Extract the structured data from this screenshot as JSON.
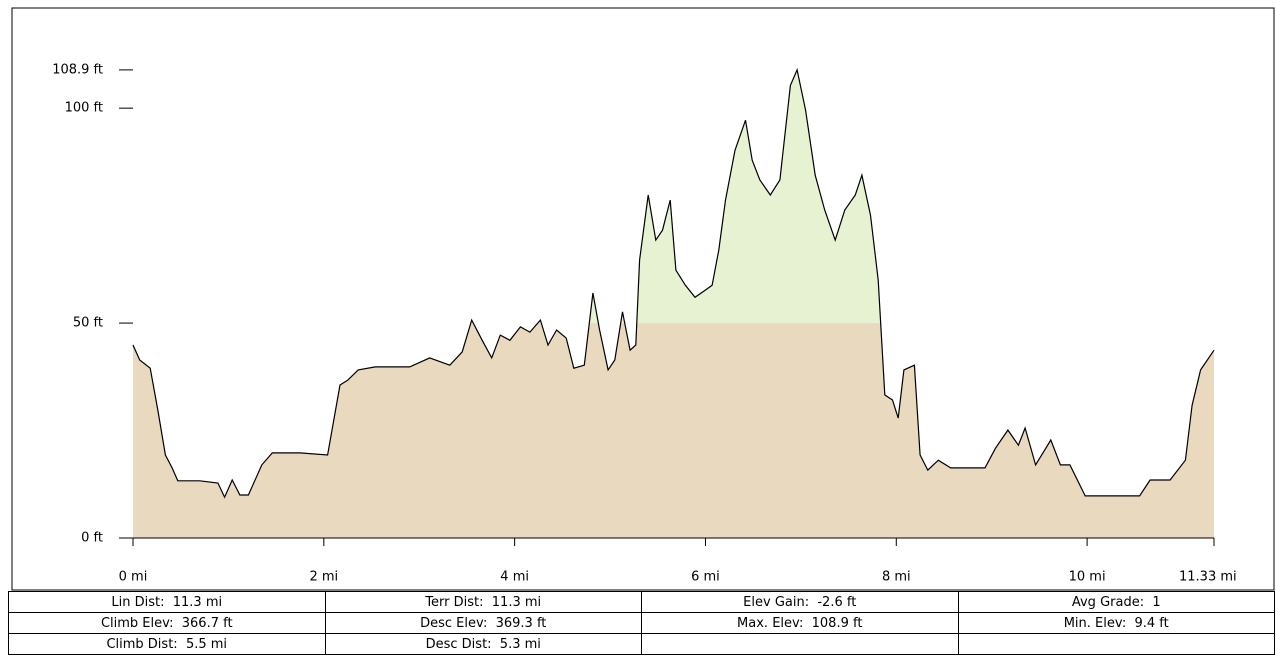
{
  "chart_data": {
    "type": "area",
    "x": [
      0,
      0.07,
      0.18,
      0.26,
      0.34,
      0.41,
      0.47,
      0.7,
      0.89,
      0.96,
      1.04,
      1.12,
      1.21,
      1.35,
      1.46,
      1.75,
      2.04,
      2.17,
      2.25,
      2.36,
      2.54,
      2.9,
      3.11,
      3.32,
      3.45,
      3.55,
      3.66,
      3.76,
      3.85,
      3.95,
      4.06,
      4.16,
      4.27,
      4.35,
      4.44,
      4.54,
      4.62,
      4.73,
      4.82,
      4.89,
      4.98,
      5.05,
      5.13,
      5.21,
      5.27,
      5.31,
      5.4,
      5.48,
      5.55,
      5.63,
      5.69,
      5.79,
      5.89,
      6.0,
      6.07,
      6.14,
      6.21,
      6.31,
      6.42,
      6.49,
      6.57,
      6.68,
      6.78,
      6.89,
      6.96,
      7.05,
      7.15,
      7.25,
      7.36,
      7.46,
      7.57,
      7.64,
      7.73,
      7.81,
      7.88,
      7.96,
      8.02,
      8.08,
      8.19,
      8.25,
      8.33,
      8.44,
      8.57,
      8.93,
      9.04,
      9.17,
      9.28,
      9.35,
      9.46,
      9.62,
      9.72,
      9.82,
      9.98,
      10.55,
      10.66,
      10.87,
      11.03,
      11.1,
      11.19,
      11.33
    ],
    "values": [
      44.9,
      41.4,
      39.5,
      29.8,
      19.3,
      16.3,
      13.3,
      13.3,
      12.8,
      9.5,
      13.5,
      10,
      10,
      17,
      19.8,
      19.8,
      19.3,
      35.6,
      36.7,
      39.1,
      39.8,
      39.8,
      41.9,
      40.2,
      43.3,
      50.7,
      46,
      41.9,
      47.2,
      46,
      49.1,
      47.9,
      50.7,
      44.9,
      48.4,
      46.5,
      39.5,
      40.2,
      57,
      48.4,
      39.1,
      41.4,
      52.6,
      43.7,
      44.9,
      64.7,
      79.8,
      69.3,
      71.6,
      78.6,
      62.3,
      58.8,
      56,
      57.7,
      58.8,
      67,
      78.6,
      90.2,
      97.2,
      87.9,
      83.3,
      79.8,
      83.3,
      105.3,
      108.9,
      99.5,
      84.4,
      76.3,
      69.3,
      76.3,
      79.8,
      84.4,
      75.1,
      60,
      33.3,
      32.1,
      27.9,
      39.1,
      40.2,
      19.3,
      15.8,
      18.1,
      16.3,
      16.3,
      20.9,
      25.1,
      21.6,
      25.6,
      17,
      22.8,
      17,
      17,
      9.8,
      9.8,
      13.5,
      13.5,
      18.1,
      30.9,
      39.1,
      43.7
    ],
    "xlim": [
      0,
      11.33
    ],
    "ylim": [
      0,
      123.3
    ],
    "xticks": [
      {
        "value": 0,
        "label": "0 mi"
      },
      {
        "value": 2,
        "label": "2 mi"
      },
      {
        "value": 4,
        "label": "4 mi"
      },
      {
        "value": 6,
        "label": "6 mi"
      },
      {
        "value": 8,
        "label": "8 mi"
      },
      {
        "value": 10,
        "label": "10 mi"
      },
      {
        "value": 11.33,
        "label": "11.33 mi"
      }
    ],
    "yticks": [
      {
        "value": 0,
        "label": "0 ft"
      },
      {
        "value": 50,
        "label": "50 ft"
      },
      {
        "value": 100,
        "label": "100 ft"
      },
      {
        "value": 108.9,
        "label": "108.9 ft"
      }
    ],
    "highlight_above": 50,
    "fill_color": "#e8d9bf",
    "highlight_color": "#e6f2d2",
    "line_color": "#000000"
  },
  "table": {
    "rows": [
      [
        "Lin Dist:  11.3 mi",
        "Terr Dist:  11.3 mi",
        "Elev Gain:  -2.6 ft",
        "Avg Grade:  1"
      ],
      [
        "Climb Elev:  366.7 ft",
        "Desc Elev:  369.3 ft",
        "Max. Elev:  108.9 ft",
        "Min. Elev:  9.4 ft"
      ],
      [
        "Climb Dist:  5.5 mi",
        "Desc Dist:  5.3 mi"
      ]
    ]
  }
}
